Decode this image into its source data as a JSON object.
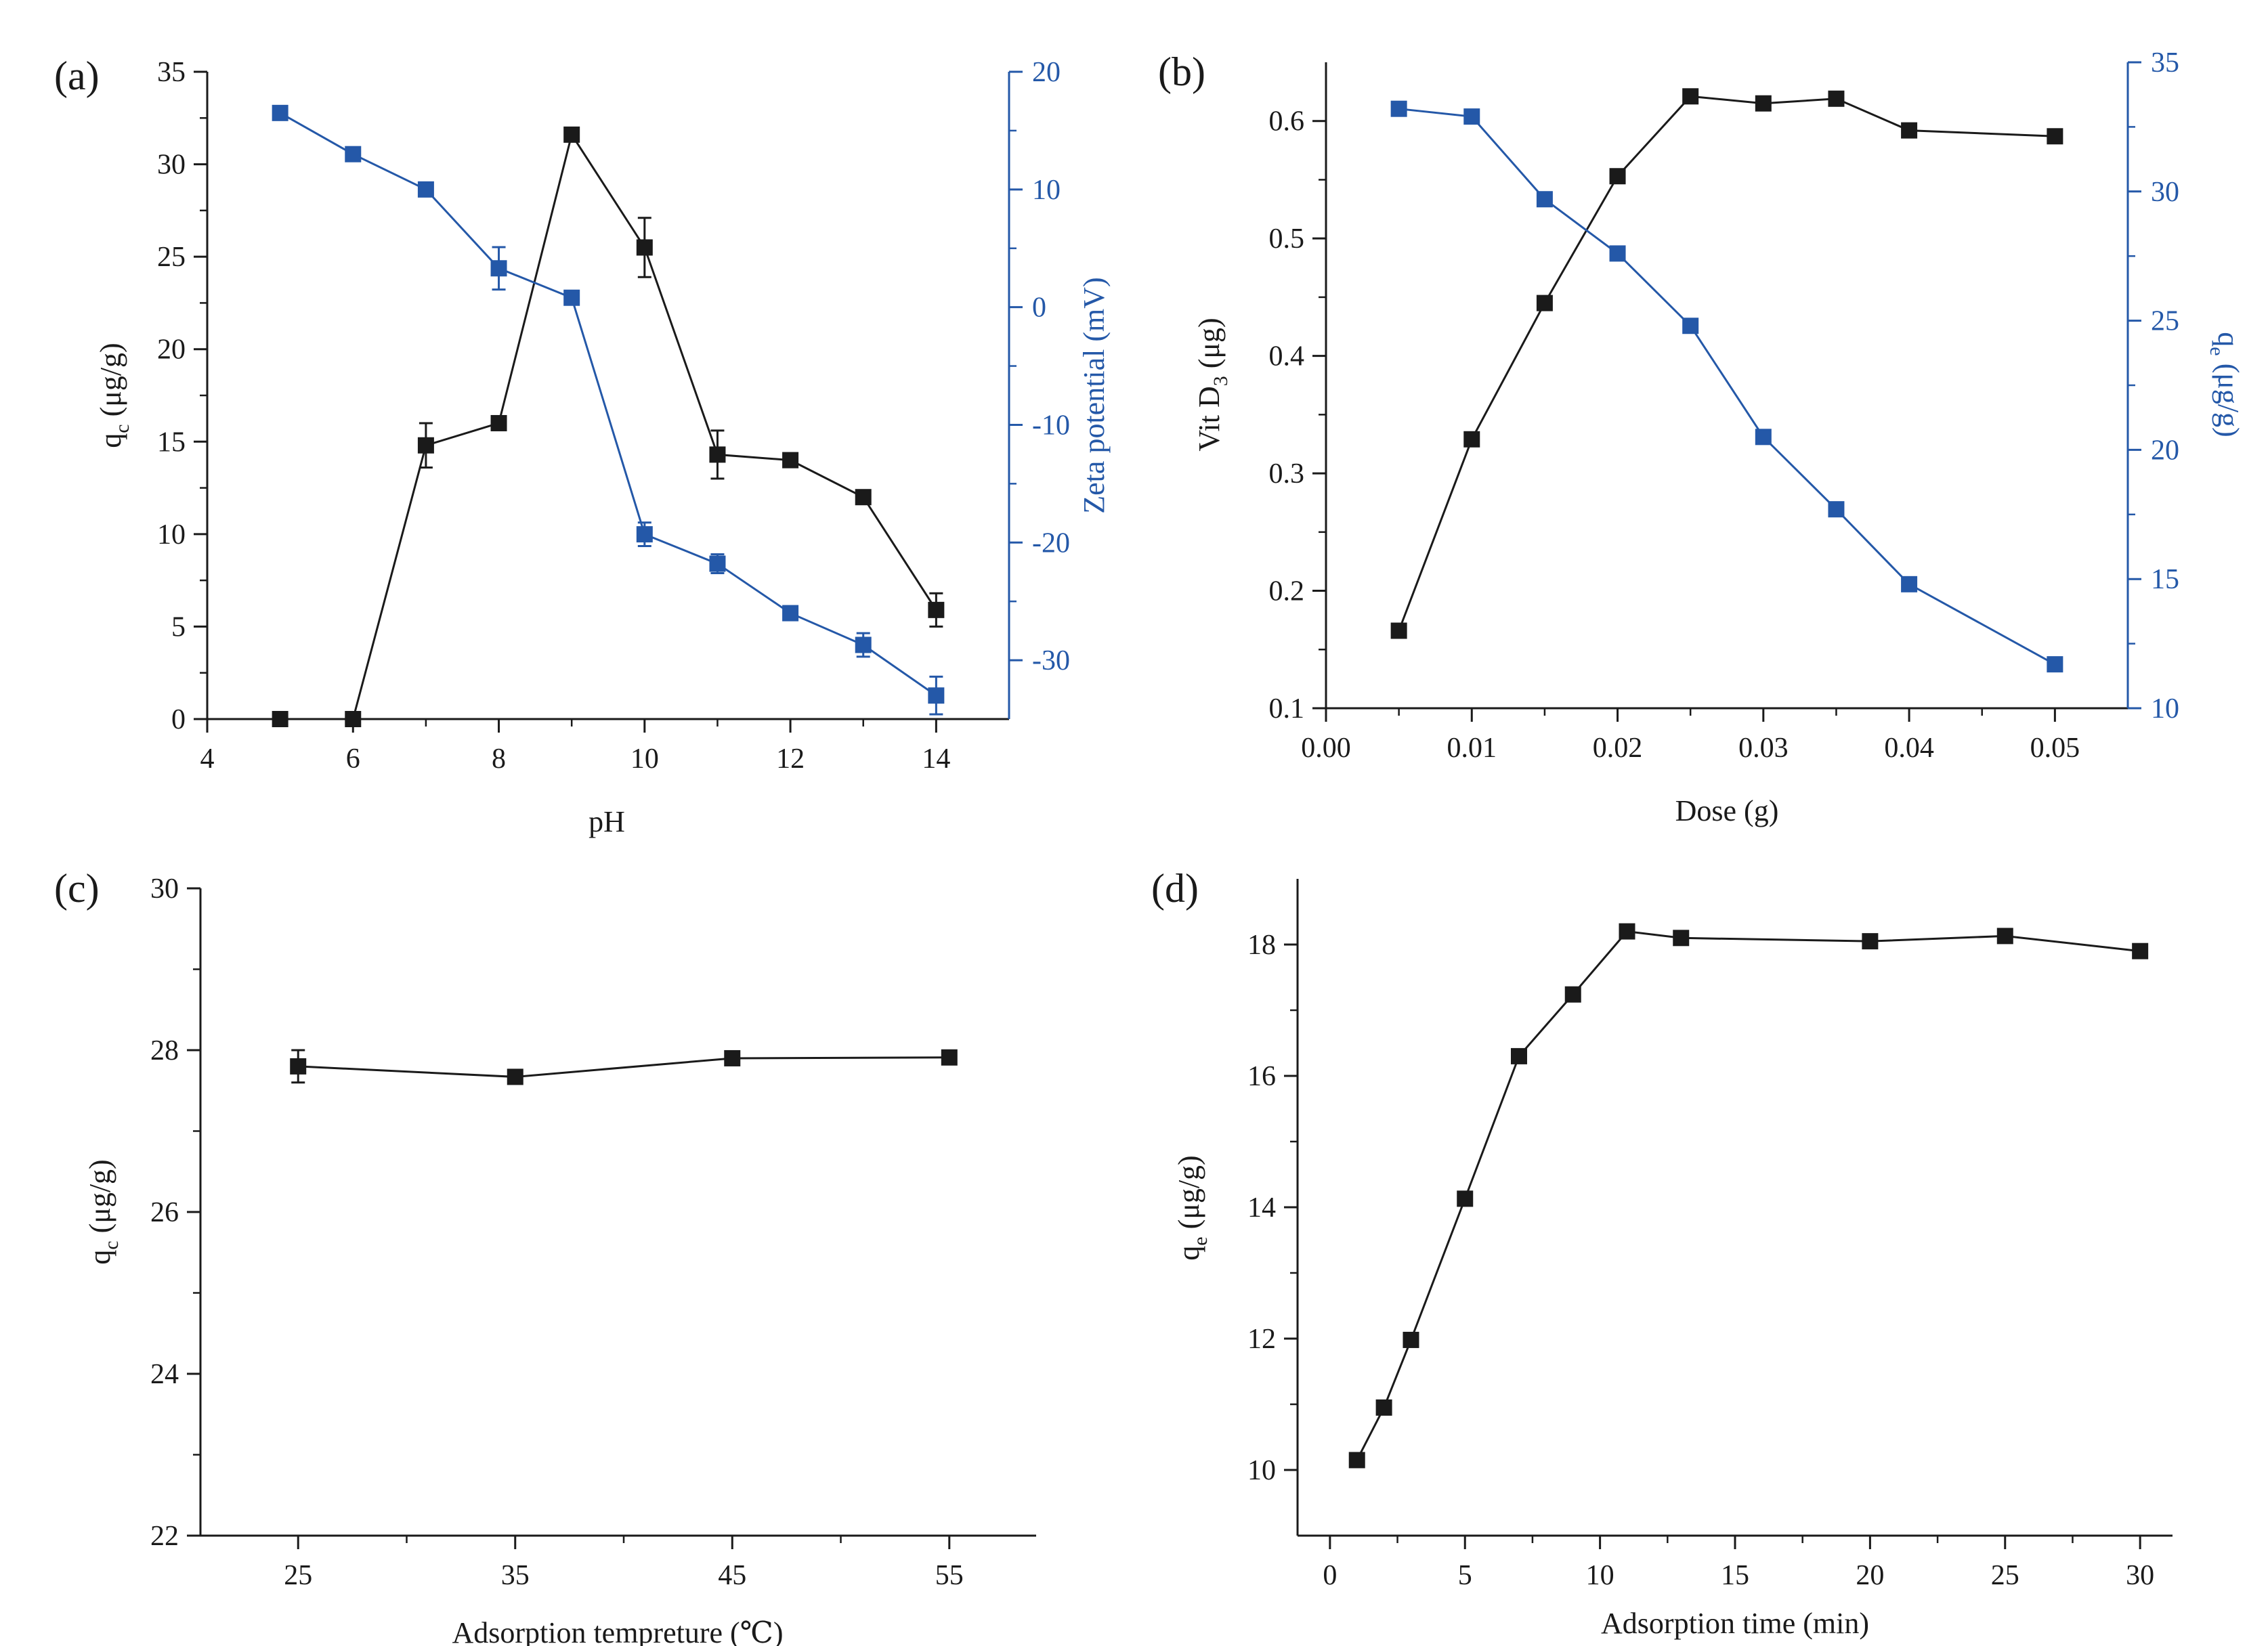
{
  "colors": {
    "black_series": "#1a1a1a",
    "blue_series": "#2458a8",
    "axis": "#1a1a1a"
  },
  "chart_data": [
    {
      "panel_label": "(a)",
      "type": "line",
      "xlabel": "pH",
      "ylabel": {
        "base": "q",
        "sub": "c",
        "unit": " (μg/g)"
      },
      "ylabel_right": "Zeta potential (mV)",
      "xlim": [
        4,
        15
      ],
      "ylim": [
        0,
        35
      ],
      "ylim_right": [
        -35,
        20
      ],
      "xticks": [
        4,
        6,
        8,
        10,
        12,
        14
      ],
      "yticks": [
        0,
        5,
        10,
        15,
        20,
        25,
        30,
        35
      ],
      "yticks_right": [
        -30,
        -20,
        -10,
        0,
        10,
        20
      ],
      "series": [
        {
          "name": "q_c",
          "axis": "left",
          "color": "#1a1a1a",
          "x": [
            5,
            6,
            7,
            8,
            9,
            10,
            11,
            12,
            13,
            14
          ],
          "y": [
            0,
            0,
            14.8,
            16.0,
            31.6,
            25.5,
            14.3,
            14.0,
            12.0,
            5.9
          ],
          "err": [
            0,
            0,
            1.2,
            0,
            0,
            1.6,
            1.3,
            0,
            0,
            0.9
          ]
        },
        {
          "name": "Zeta potential",
          "axis": "right",
          "color": "#2458a8",
          "x": [
            5,
            6,
            7,
            8,
            9,
            10,
            11,
            12,
            13,
            14
          ],
          "y": [
            16.5,
            13.0,
            10.0,
            3.3,
            0.8,
            -19.3,
            -21.8,
            -26.0,
            -28.7,
            -33.0
          ],
          "err": [
            0,
            0,
            0,
            1.8,
            0,
            1.0,
            0.8,
            0,
            1.0,
            1.6
          ]
        }
      ]
    },
    {
      "panel_label": "(b)",
      "type": "line",
      "xlabel": "Dose (g)",
      "ylabel": {
        "base": "Vit D",
        "sub": "3",
        "unit": " (μg)"
      },
      "ylabel_right": {
        "base": "q",
        "sub": "e",
        "unit": " (μg/g)"
      },
      "xlim": [
        0.0,
        0.055
      ],
      "ylim": [
        0.1,
        0.65
      ],
      "ylim_right": [
        10,
        35
      ],
      "xticks": [
        "0.00",
        "0.01",
        "0.02",
        "0.03",
        "0.04",
        "0.05"
      ],
      "yticks": [
        "0.1",
        "0.2",
        "0.3",
        "0.4",
        "0.5",
        "0.6"
      ],
      "yticks_right": [
        10,
        15,
        20,
        25,
        30,
        35
      ],
      "series": [
        {
          "name": "Vit D3",
          "axis": "left",
          "color": "#1a1a1a",
          "x": [
            0.005,
            0.01,
            0.015,
            0.02,
            0.025,
            0.03,
            0.035,
            0.04,
            0.05
          ],
          "y": [
            0.166,
            0.329,
            0.445,
            0.553,
            0.621,
            0.615,
            0.619,
            0.592,
            0.587
          ]
        },
        {
          "name": "q_e",
          "axis": "right",
          "color": "#2458a8",
          "x": [
            0.005,
            0.01,
            0.015,
            0.02,
            0.025,
            0.03,
            0.035,
            0.04,
            0.05
          ],
          "y": [
            33.2,
            32.9,
            29.7,
            27.6,
            24.8,
            20.5,
            17.7,
            14.8,
            11.7
          ]
        }
      ]
    },
    {
      "panel_label": "(c)",
      "type": "line",
      "xlabel": "Adsorption tempreture (℃)",
      "ylabel": {
        "base": "q",
        "sub": "c",
        "unit": " (μg/g)"
      },
      "xlim": [
        20.5,
        59
      ],
      "ylim": [
        22,
        30
      ],
      "xticks": [
        25,
        35,
        45,
        55
      ],
      "yticks": [
        22,
        24,
        26,
        28,
        30
      ],
      "series": [
        {
          "name": "q_c",
          "axis": "left",
          "color": "#1a1a1a",
          "x": [
            25,
            35,
            45,
            55
          ],
          "y": [
            27.8,
            27.67,
            27.9,
            27.91
          ],
          "err": [
            0,
            0.0,
            0,
            0
          ],
          "err_top": [
            28.0,
            0,
            0,
            0
          ],
          "err_bottom": [
            27.6,
            0,
            0,
            0
          ]
        }
      ]
    },
    {
      "panel_label": "(d)",
      "type": "line",
      "xlabel": "Adsorption time (min)",
      "ylabel": {
        "base": "q",
        "sub": "e",
        "unit": " (μg/g)"
      },
      "xlim": [
        -1.2,
        31.2
      ],
      "ylim": [
        9,
        19
      ],
      "xticks": [
        0,
        5,
        10,
        15,
        20,
        25,
        30
      ],
      "yticks": [
        10,
        12,
        14,
        16,
        18
      ],
      "series": [
        {
          "name": "q_e",
          "axis": "left",
          "color": "#1a1a1a",
          "x": [
            1,
            2,
            3,
            5,
            7,
            9,
            11,
            13,
            20,
            25,
            30
          ],
          "y": [
            10.15,
            10.95,
            11.98,
            14.13,
            16.3,
            17.24,
            18.2,
            18.1,
            18.05,
            18.13,
            17.9
          ]
        }
      ]
    }
  ]
}
